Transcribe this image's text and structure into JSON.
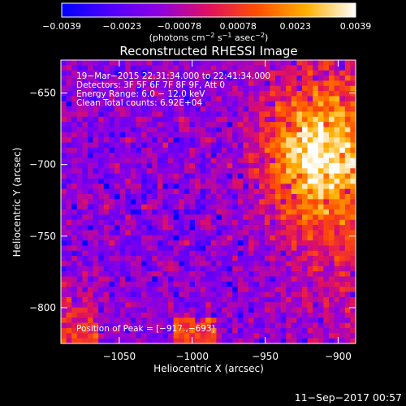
{
  "chart_data": {
    "type": "heatmap",
    "title": "Reconstructed RHESSI Image",
    "xlabel": "Heliocentric X (arcsec)",
    "ylabel": "Heliocentric Y (arcsec)",
    "xlim": [
      -1090,
      -888
    ],
    "ylim": [
      -825,
      -627
    ],
    "xticks": [
      -1050,
      -1000,
      -950,
      -900
    ],
    "xtick_labels": [
      "−1050",
      "−1000",
      "−950",
      "−900"
    ],
    "yticks": [
      -800,
      -750,
      -700,
      -650
    ],
    "ytick_labels": [
      "−800",
      "−750",
      "−700",
      "−650"
    ],
    "grid": false,
    "colorbar": {
      "position": "top",
      "range": [
        -0.0039,
        0.0039
      ],
      "ticks": [
        -0.0039,
        -0.0023,
        -0.00078,
        0.00078,
        0.0023,
        0.0039
      ],
      "tick_labels": [
        "−0.0039",
        "−0.0023",
        "−0.00078",
        "0.00078",
        "0.0023",
        "0.0039"
      ],
      "label_main": "(photons cm",
      "label_sup1": "−2",
      "label_mid1": " s",
      "label_sup2": "−1",
      "label_mid2": " asec",
      "label_sup3": "−2",
      "label_end": ")",
      "colors": [
        "#0000ff",
        "#5000ff",
        "#9000e0",
        "#e01060",
        "#ff5000",
        "#ffb000",
        "#ffffff"
      ]
    },
    "annotations": [
      "19−Mar−2015 22:31:34.000 to 22:41:34.000",
      "Detectors: 3F 5F 6F 7F 8F 9F, Att 0",
      "Energy Range: 6.0 − 12.0 keV",
      "Clean     Total counts: 6.92E+04"
    ],
    "peak_label": "Position of Peak = [−917.,−693]",
    "peak": {
      "x": -917,
      "y": -693
    },
    "footer_date": "11−Sep−2017 00:57"
  }
}
